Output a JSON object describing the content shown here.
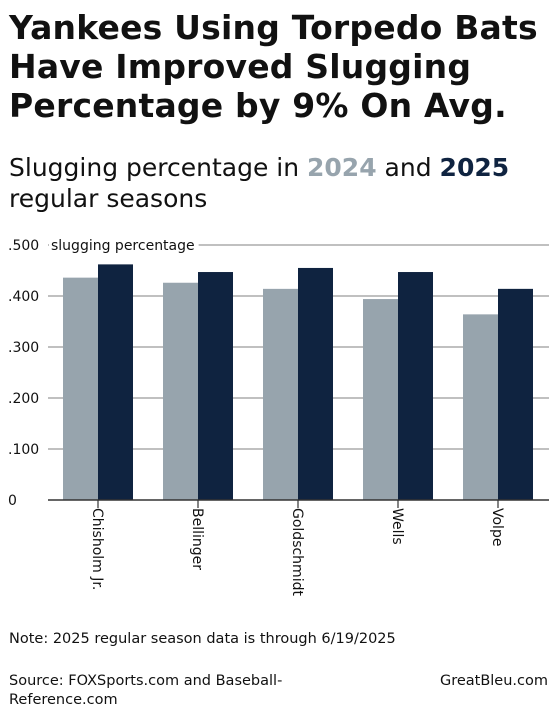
{
  "title": "Yankees Using Torpedo Bats Have Improved Slugging Percentage by 9% On Avg.",
  "subtitle": {
    "prefix": "Slugging percentage in ",
    "year_a": "2024",
    "middle": " and ",
    "year_b": "2025",
    "suffix": " regular seasons"
  },
  "colors": {
    "year_2024": "#97a4ad",
    "year_2025": "#0f2340",
    "grid": "#9a9a9a",
    "axis": "#333333"
  },
  "chart_data": {
    "type": "bar",
    "categories": [
      "Chisholm Jr.",
      "Bellinger",
      "Goldschmidt",
      "Wells",
      "Volpe"
    ],
    "series": [
      {
        "name": "2024",
        "values": [
          0.436,
          0.426,
          0.414,
          0.394,
          0.364
        ]
      },
      {
        "name": "2025",
        "values": [
          0.462,
          0.447,
          0.455,
          0.447,
          0.414
        ]
      }
    ],
    "ylim": [
      0,
      0.5
    ],
    "yticks": [
      0,
      0.1,
      0.2,
      0.3,
      0.4,
      0.5
    ],
    "ytick_labels": [
      "0",
      ".100",
      ".200",
      ".300",
      ".400",
      ".500"
    ],
    "ylabel": "slugging percentage",
    "grid": true
  },
  "note": "Note: 2025 regular season data is through 6/19/2025",
  "source": "Source: FOXSports.com and Baseball-Reference.com",
  "brand": "GreatBleu.com"
}
